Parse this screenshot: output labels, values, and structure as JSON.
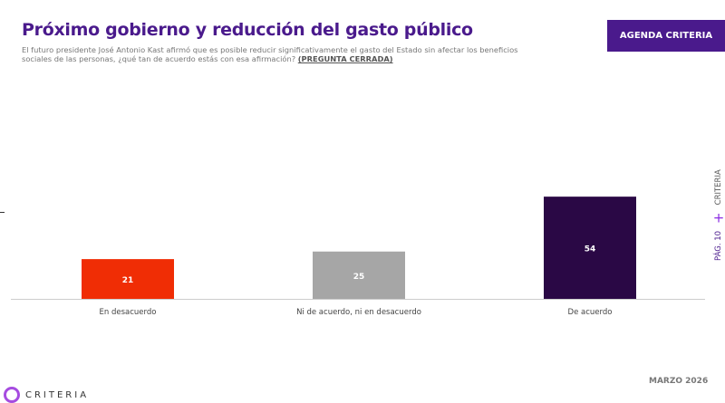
{
  "header": {
    "title": "Próximo gobierno y reducción del gasto público",
    "subtitle": "El futuro presidente José Antonio Kast afirmó que es posible reducir significativamente el gasto del Estado sin afectar los beneficios sociales de las personas, ¿qué tan de acuerdo estás con esa afirmación?",
    "subtitle_tag": "(PREGUNTA CERRADA)",
    "agenda_button": "AGENDA CRITERIA"
  },
  "side": {
    "brand": "CRITERIA",
    "page": "PÁG. 10"
  },
  "footer": {
    "date": "MARZO 2026",
    "logo_text": "CRITERIA"
  },
  "chart_data": {
    "type": "bar",
    "categories": [
      "En desacuerdo",
      "Ni de acuerdo, ni en desacuerdo",
      "De acuerdo"
    ],
    "values": [
      21,
      25,
      54
    ],
    "colors": [
      "#f02d05",
      "#a6a6a6",
      "#2a0845"
    ],
    "ylim": [
      0,
      100
    ],
    "grid": false
  }
}
